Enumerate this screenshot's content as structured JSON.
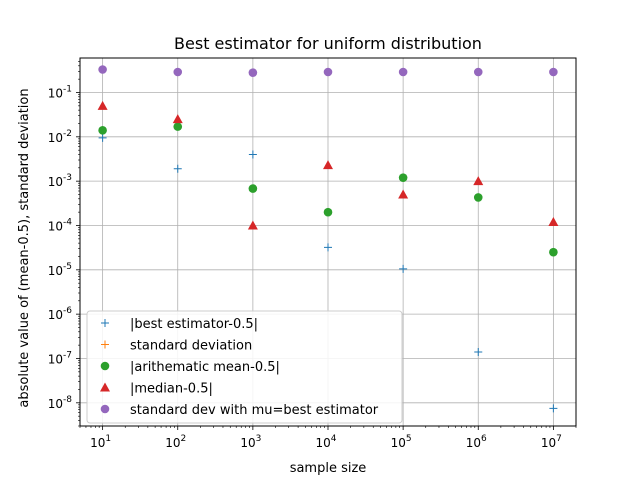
{
  "chart_data": {
    "type": "scatter",
    "title": "Best estimator for uniform distribution",
    "xlabel": "sample size",
    "ylabel": "absolute value of (mean-0.5), standard deviation",
    "xscale": "log",
    "yscale": "log",
    "xlim": [
      5,
      20000000
    ],
    "ylim": [
      3e-09,
      0.6
    ],
    "grid": true,
    "legend_position": "lower-left",
    "x_ticks": [
      {
        "exp": 1,
        "value": 10
      },
      {
        "exp": 2,
        "value": 100
      },
      {
        "exp": 3,
        "value": 1000
      },
      {
        "exp": 4,
        "value": 10000
      },
      {
        "exp": 5,
        "value": 100000
      },
      {
        "exp": 6,
        "value": 1000000
      },
      {
        "exp": 7,
        "value": 10000000
      }
    ],
    "y_ticks": [
      {
        "exp": -8,
        "value": 1e-08
      },
      {
        "exp": -7,
        "value": 1e-07
      },
      {
        "exp": -6,
        "value": 1e-06
      },
      {
        "exp": -5,
        "value": 1e-05
      },
      {
        "exp": -4,
        "value": 0.0001
      },
      {
        "exp": -3,
        "value": 0.001
      },
      {
        "exp": -2,
        "value": 0.01
      },
      {
        "exp": -1,
        "value": 0.1
      }
    ],
    "tick_base": "10",
    "x": [
      10,
      100,
      1000,
      10000,
      100000,
      1000000,
      10000000
    ],
    "series": [
      {
        "name": "|best estimator-0.5|",
        "marker": "plus",
        "color": "#1f77b4",
        "values": [
          0.0095,
          0.0019,
          0.004,
          3.2e-05,
          1.05e-05,
          1.4e-07,
          7.5e-09
        ]
      },
      {
        "name": "standard deviation",
        "marker": "plus",
        "color": "#ff7f0e",
        "values": []
      },
      {
        "name": "|arithematic mean-0.5|",
        "marker": "circle",
        "color": "#2ca02c",
        "values": [
          0.014,
          0.017,
          0.00068,
          0.0002,
          0.0012,
          0.00043,
          2.5e-05
        ]
      },
      {
        "name": "|median-0.5|",
        "marker": "triangle",
        "color": "#d62728",
        "values": [
          0.05,
          0.025,
          0.0001,
          0.0023,
          0.0005,
          0.001,
          0.00012
        ]
      },
      {
        "name": "standard dev with mu=best estimator",
        "marker": "circle",
        "color": "#9467bd",
        "values": [
          0.33,
          0.29,
          0.28,
          0.29,
          0.29,
          0.29,
          0.29
        ]
      }
    ]
  }
}
